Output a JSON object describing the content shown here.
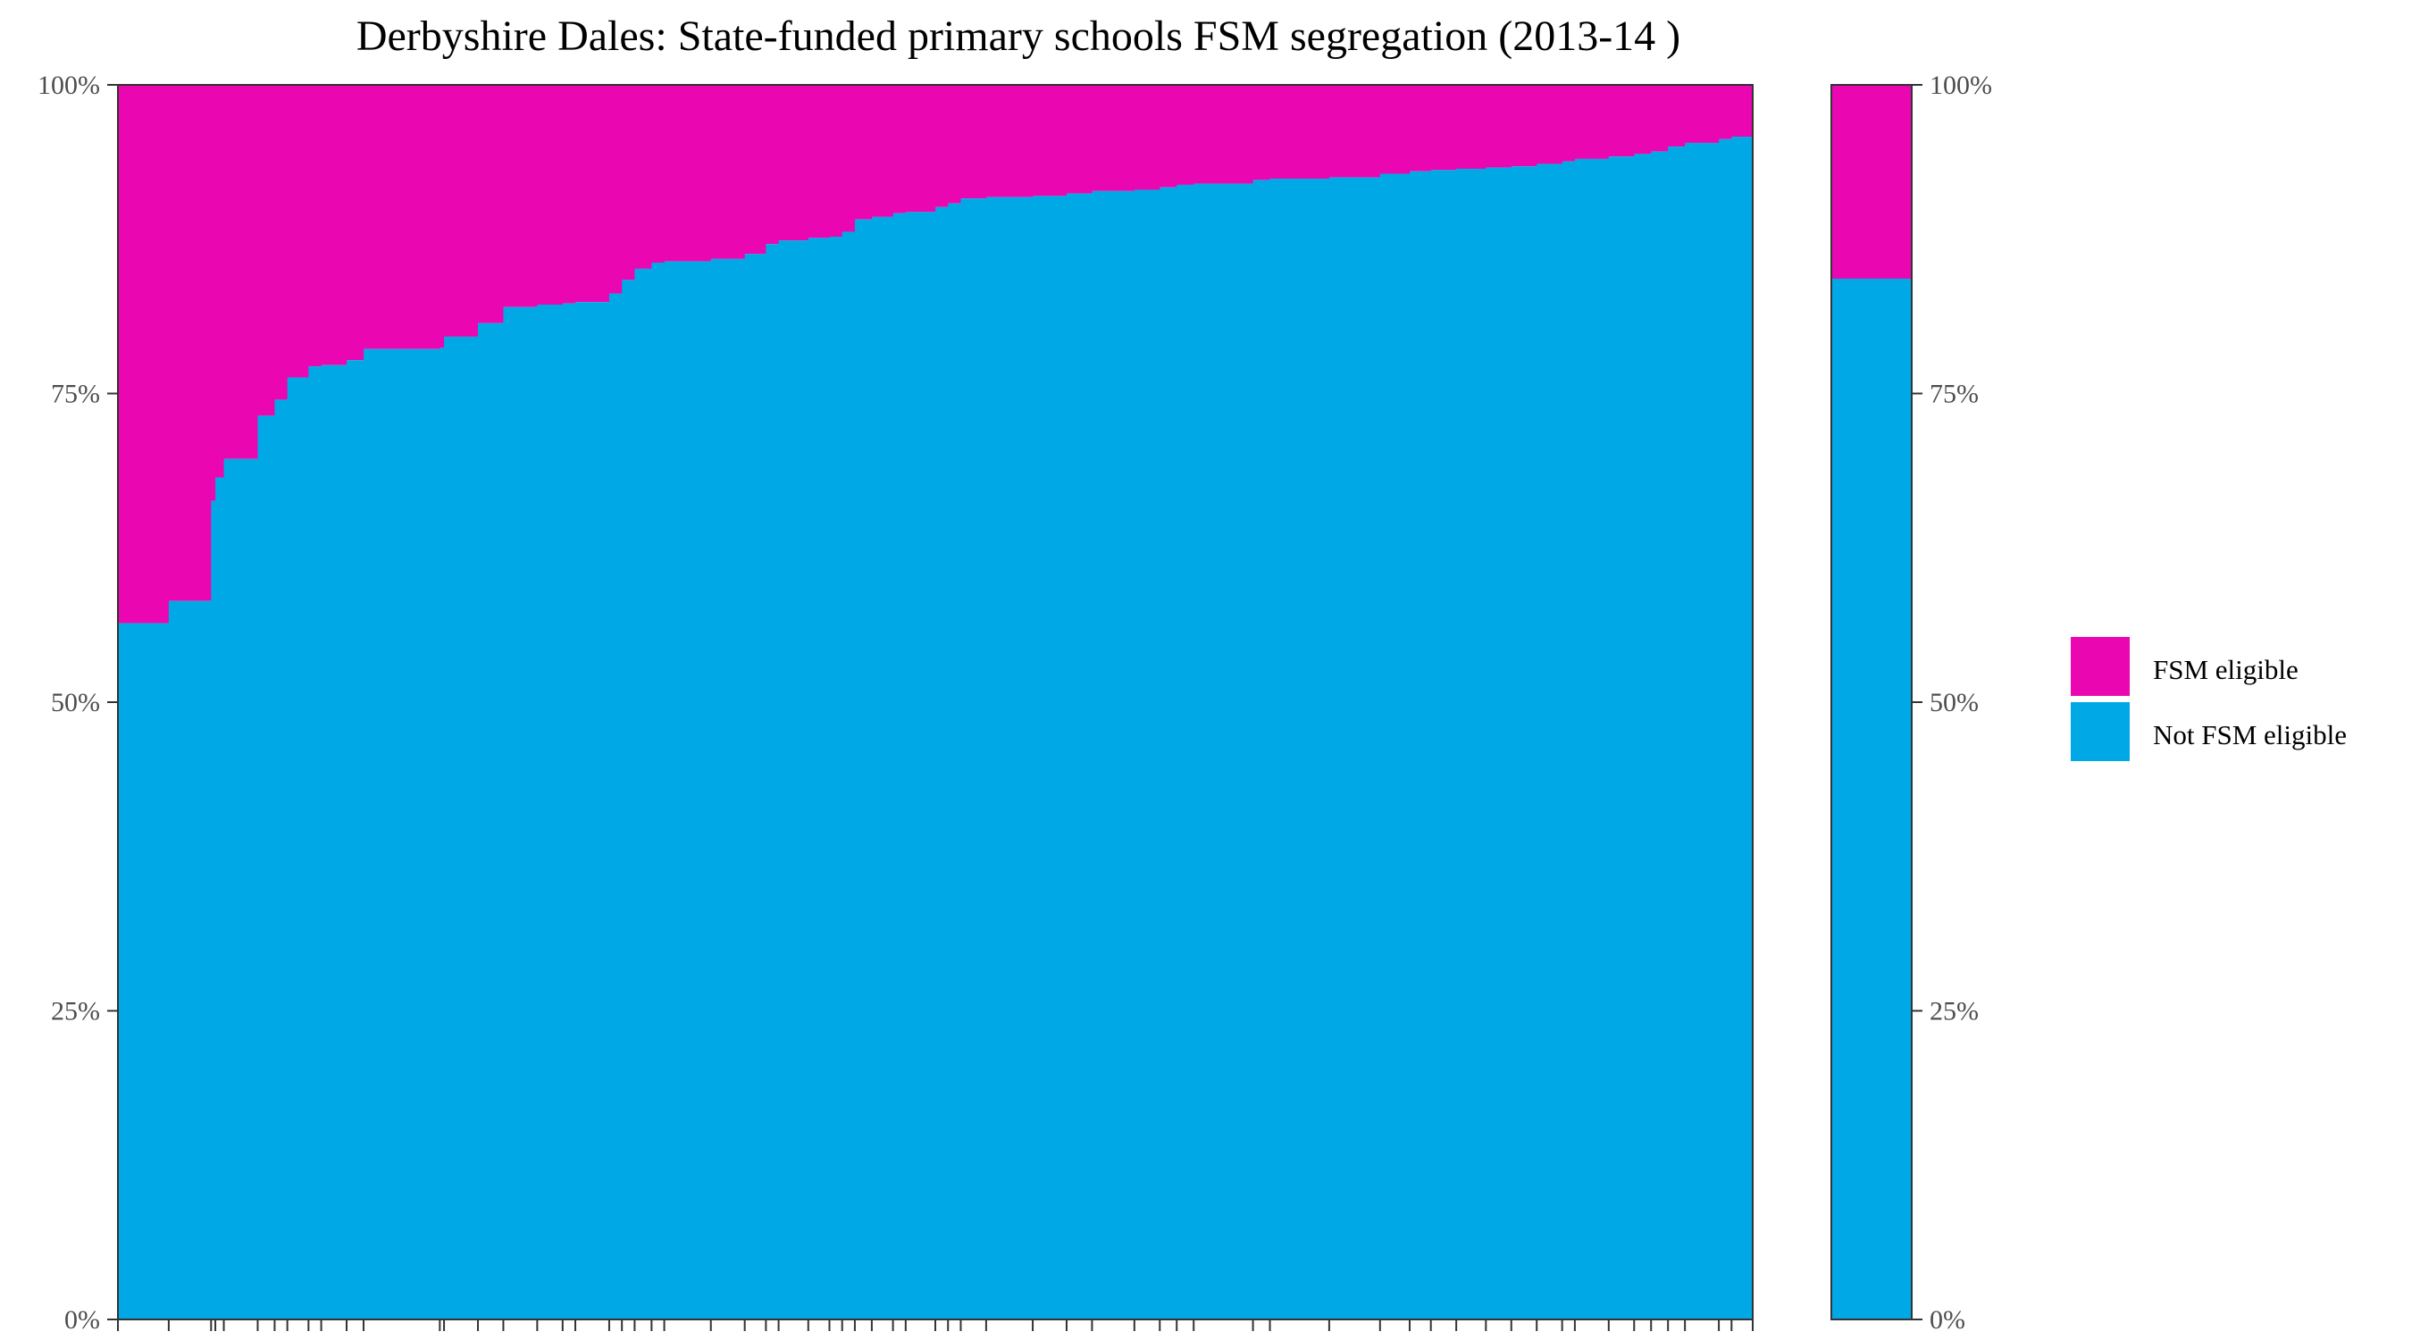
{
  "chart_data": {
    "type": "bar",
    "title": "Derbyshire Dales: State-funded primary schools FSM segregation (2013-14 )",
    "xlabel": "",
    "ylabel": "",
    "ylim": [
      0,
      1
    ],
    "y_ticks": [
      "0%",
      "25%",
      "50%",
      "75%",
      "100%"
    ],
    "stacked": true,
    "legend": {
      "position": "right",
      "entries": [
        {
          "label": "FSM eligible",
          "color": "#EA06B1"
        },
        {
          "label": "Not FSM eligible",
          "color": "#00A8E6"
        }
      ]
    },
    "colors": {
      "fsm": "#EA06B1",
      "not_fsm": "#00A8E6",
      "axis": "#333333"
    },
    "schools": {
      "description": "Not FSM eligible share per school, ordered ascending; remaining share is FSM eligible",
      "widths": [
        12,
        10,
        1,
        2,
        8,
        4,
        3,
        5,
        3,
        6,
        4,
        18,
        1,
        8,
        6,
        8,
        6,
        3,
        8,
        3,
        3,
        4,
        3,
        11,
        8,
        5,
        3,
        7,
        5,
        3,
        3,
        4,
        5,
        3,
        7,
        3,
        3,
        6,
        11,
        8,
        6,
        10,
        6,
        4,
        4,
        14,
        4,
        14,
        12,
        7,
        5,
        6,
        7,
        6,
        6,
        6,
        3,
        8,
        6,
        4,
        4,
        4,
        8,
        3,
        5
      ],
      "not_fsm_share": [
        0.564,
        0.582,
        0.663,
        0.682,
        0.697,
        0.732,
        0.745,
        0.763,
        0.772,
        0.773,
        0.777,
        0.786,
        0.787,
        0.796,
        0.807,
        0.82,
        0.822,
        0.823,
        0.824,
        0.831,
        0.842,
        0.851,
        0.856,
        0.857,
        0.859,
        0.863,
        0.871,
        0.874,
        0.876,
        0.877,
        0.881,
        0.891,
        0.893,
        0.896,
        0.897,
        0.901,
        0.904,
        0.908,
        0.909,
        0.91,
        0.912,
        0.914,
        0.915,
        0.917,
        0.919,
        0.92,
        0.923,
        0.924,
        0.925,
        0.928,
        0.93,
        0.931,
        0.932,
        0.933,
        0.934,
        0.936,
        0.938,
        0.94,
        0.942,
        0.944,
        0.946,
        0.95,
        0.953,
        0.956,
        0.958
      ]
    },
    "overall": {
      "not_fsm_share": 0.843
    }
  }
}
